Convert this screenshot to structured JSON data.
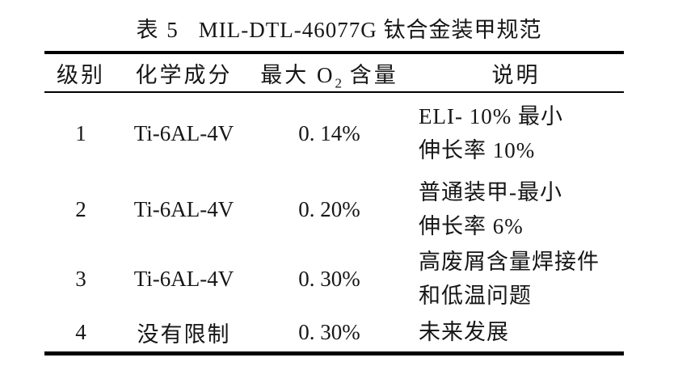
{
  "caption": {
    "label": "表 5",
    "title": "MIL-DTL-46077G 钛合金装甲规范"
  },
  "header": {
    "grade": "级别",
    "composition": "化学成分",
    "max_o2_pre": "最大 O",
    "max_o2_sub": "2",
    "max_o2_post": " 含量",
    "description": "说明"
  },
  "rows": [
    {
      "grade": "1",
      "composition": "Ti-6AL-4V",
      "max_o2": "0. 14%",
      "description_lines": [
        "ELI- 10% 最小",
        "伸长率 10%"
      ]
    },
    {
      "grade": "2",
      "composition": "Ti-6AL-4V",
      "max_o2": "0. 20%",
      "description_lines": [
        "普通装甲-最小",
        "伸长率 6%"
      ]
    },
    {
      "grade": "3",
      "composition": "Ti-6AL-4V",
      "max_o2": "0. 30%",
      "description_lines": [
        "高废屑含量焊接件",
        "和低温问题"
      ]
    },
    {
      "grade": "4",
      "composition": "没有限制",
      "max_o2": "0. 30%",
      "description_lines": [
        "未来发展"
      ]
    }
  ],
  "colors": {
    "text": "#161616",
    "background": "#ffffff",
    "rule": "#000000"
  }
}
